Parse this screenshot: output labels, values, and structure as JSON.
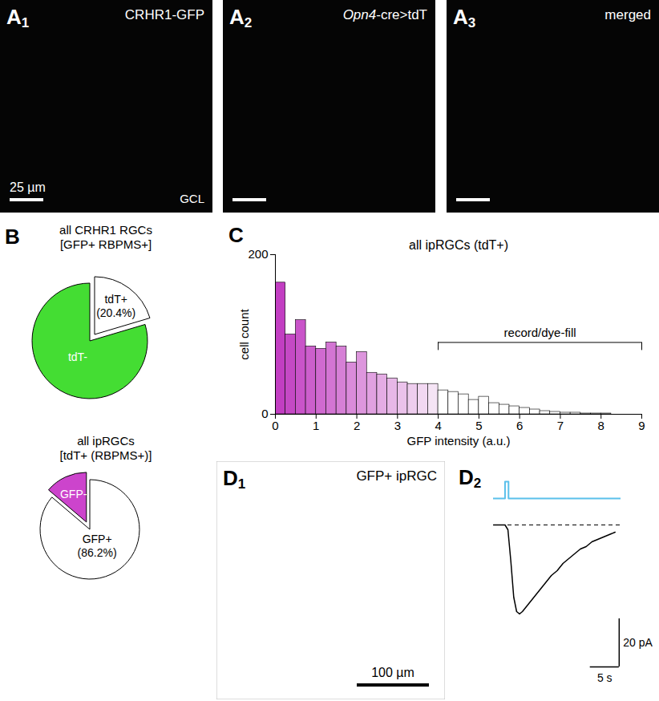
{
  "panels": [
    {
      "label": "A",
      "sub": "1",
      "title": "CRHR1-GFP",
      "scale_bar": "25 µm",
      "region": "GCL"
    },
    {
      "label": "A",
      "sub": "2",
      "title": "Opn4-cre>tdT",
      "italic": "Opn4"
    },
    {
      "label": "A",
      "sub": "3",
      "title": "merged"
    },
    {
      "label": "D",
      "sub": "1",
      "title": "GFP+ ipRGC",
      "scale_bar": "100 µm"
    }
  ],
  "chart_data": [
    {
      "type": "pie",
      "label": "B",
      "title": "all CRHR1 RGCs",
      "subtitle": "[GFP+ RBPMS+]",
      "categories": [
        "tdT+",
        "tdT-"
      ],
      "values": [
        20.4,
        79.6
      ],
      "value_labels": [
        "(20.4%)",
        null
      ],
      "colors": [
        "#ffffff",
        "#44dd33"
      ]
    },
    {
      "type": "pie",
      "title": "all ipRGCs",
      "subtitle": "[tdT+ (RBPMS+)]",
      "categories": [
        "GFP-",
        "GFP+"
      ],
      "values": [
        13.8,
        86.2
      ],
      "value_labels": [
        null,
        "(86.2%)"
      ],
      "colors": [
        "#cc44cc",
        "#ffffff"
      ]
    },
    {
      "type": "histogram",
      "label": "C",
      "title": "all ipRGCs (tdT+)",
      "x_label": "GFP intensity (a.u.)",
      "y_label": "cell count",
      "bins": [
        0,
        0.25,
        0.5,
        0.75,
        1,
        1.25,
        1.5,
        1.75,
        2,
        2.25,
        2.5,
        2.75,
        3,
        3.25,
        3.5,
        3.75,
        4,
        4.25,
        4.5,
        4.75,
        5,
        5.25,
        5.5,
        5.75,
        6,
        6.25,
        6.5,
        6.75,
        7,
        7.25,
        7.5,
        7.75,
        8,
        8.25,
        8.5,
        8.75,
        9
      ],
      "values": [
        165,
        100,
        118,
        85,
        82,
        90,
        85,
        65,
        78,
        52,
        50,
        45,
        40,
        38,
        38,
        38,
        30,
        28,
        25,
        18,
        22,
        14,
        12,
        10,
        8,
        6,
        4,
        3,
        2,
        2,
        1,
        1,
        1,
        0,
        0,
        0
      ],
      "colors": [
        "#c23ec2",
        "#c549c5",
        "#c954c9",
        "#cc5fcc",
        "#d06ad0",
        "#d375d3",
        "#d680d6",
        "#da8bda",
        "#dd96dd",
        "#e1a1e1",
        "#e4ace4",
        "#e7b7e7",
        "#ebc2eb",
        "#eecdee",
        "#f2d8f2",
        "#f5e4f5",
        "#ffffff",
        "#ffffff",
        "#ffffff",
        "#ffffff",
        "#ffffff",
        "#ffffff",
        "#ffffff",
        "#ffffff",
        "#ffffff",
        "#ffffff",
        "#ffffff",
        "#ffffff",
        "#ffffff",
        "#ffffff",
        "#ffffff",
        "#ffffff",
        "#ffffff",
        "#ffffff",
        "#ffffff",
        "#ffffff"
      ],
      "xlim": [
        0,
        9
      ],
      "xticks": [
        0,
        1,
        2,
        3,
        4,
        5,
        6,
        7,
        8,
        9
      ],
      "ylim": [
        0,
        200
      ],
      "yticks": [
        0,
        200
      ],
      "annotation": {
        "text": "record/dye-fill",
        "x_range": [
          4,
          9
        ]
      }
    },
    {
      "type": "line",
      "label": "D",
      "sub": "2",
      "tick_labels": false,
      "x": [
        0,
        1,
        2,
        2.5,
        3,
        3.5,
        4,
        4.5,
        5,
        6,
        7,
        8,
        9,
        10,
        11,
        12,
        13,
        14,
        15,
        16,
        17,
        18,
        19,
        20,
        21
      ],
      "values": [
        0,
        0,
        0,
        -2,
        -15,
        -30,
        -36,
        -37,
        -36,
        -33,
        -30,
        -27,
        -24,
        -21,
        -19,
        -16,
        -14,
        -12,
        -10,
        -9,
        -7,
        -6,
        -5,
        -4,
        -3
      ],
      "color": "#000000",
      "xlim": [
        0,
        22
      ],
      "ylim": [
        -62,
        20
      ],
      "baseline": 0,
      "stimulus": {
        "on": 2,
        "off": 2.6,
        "color": "#5bc0eb"
      },
      "scale_bars": {
        "y": {
          "value": 20,
          "label": "20 pA"
        },
        "x": {
          "value": 5,
          "label": "5 s"
        }
      }
    }
  ]
}
